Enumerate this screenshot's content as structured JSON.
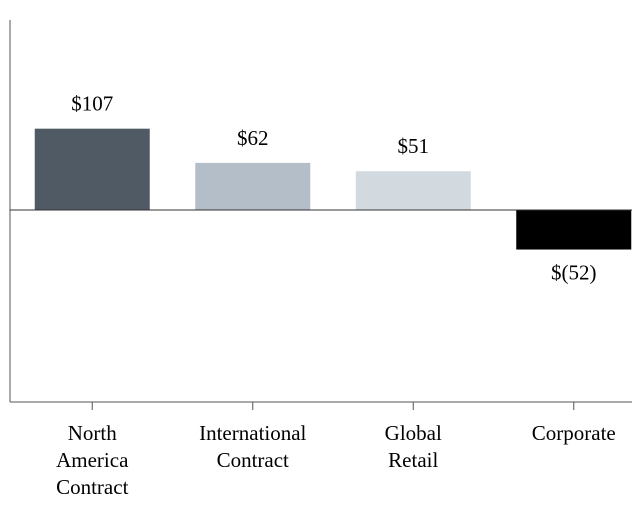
{
  "chart_data": {
    "type": "bar",
    "categories": [
      "North America Contract",
      "International Contract",
      "Global Retail",
      "Corporate"
    ],
    "values": [
      107,
      62,
      51,
      -52
    ],
    "value_labels": [
      "$107",
      "$62",
      "$51",
      "$(52)"
    ],
    "colors": [
      "#505a64",
      "#b4bec8",
      "#d2dae0",
      "#000000"
    ],
    "ylim": [
      -250,
      250
    ]
  }
}
